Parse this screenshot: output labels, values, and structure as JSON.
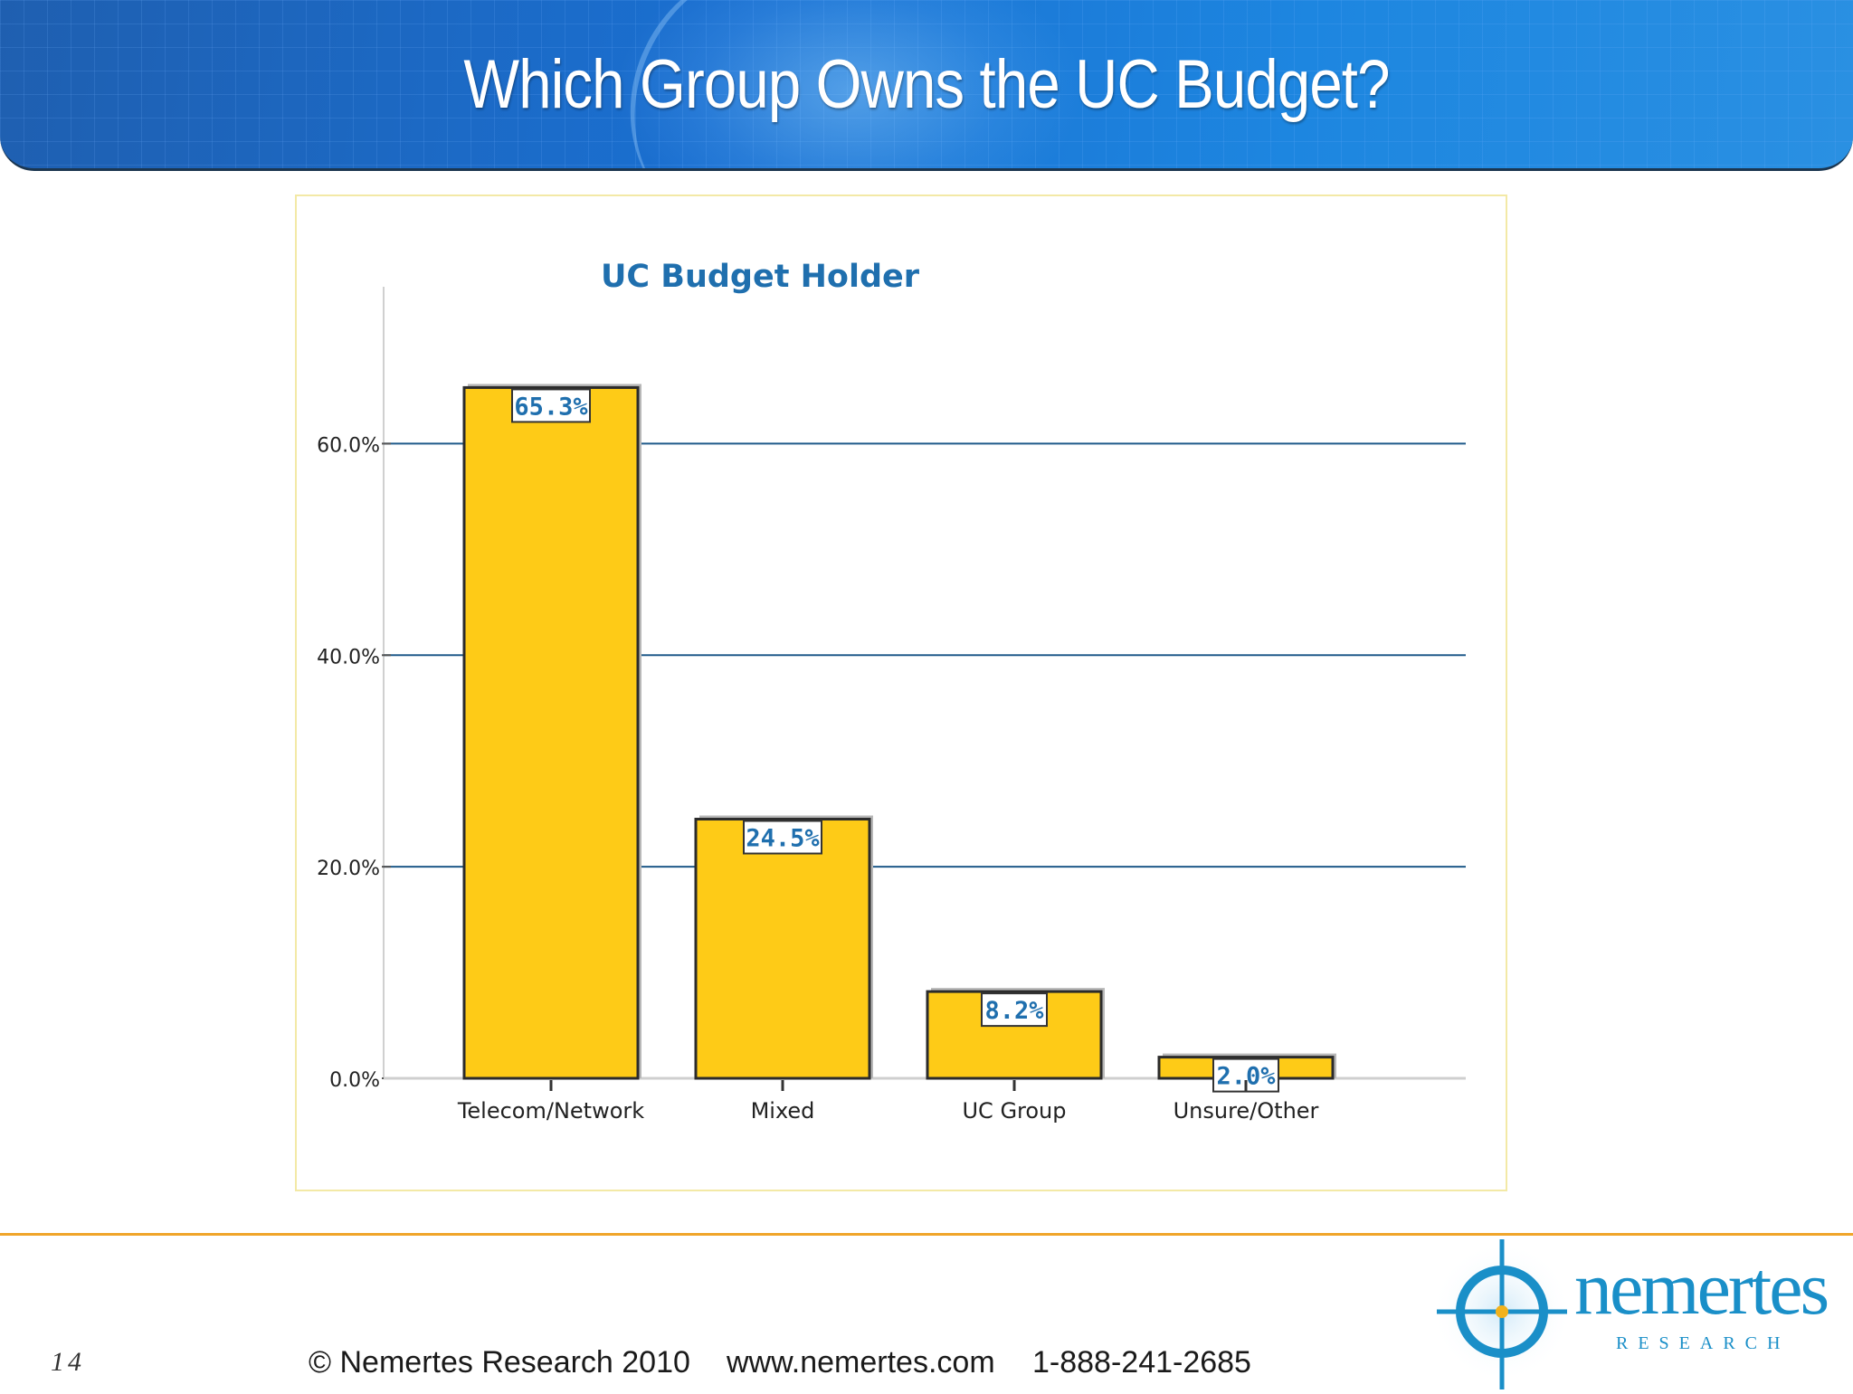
{
  "slide": {
    "title": "Which Group Owns the UC Budget?",
    "page_number": "14"
  },
  "footer": {
    "copyright": "© Nemertes Research 2010",
    "website": "www.nemertes.com",
    "phone": "1-888-241-2685"
  },
  "logo": {
    "name": "nemertes",
    "tagline": "RESEARCH"
  },
  "colors": {
    "bar_fill": "#fecb17",
    "bar_stroke": "#2b2b2b",
    "gridline": "#1f5a8a",
    "label_text": "#1f6fae",
    "title_text": "#1f6fae",
    "footer_rule": "#f0a52a"
  },
  "chart_data": {
    "type": "bar",
    "title": "UC Budget Holder",
    "xlabel": "",
    "ylabel": "",
    "categories": [
      "Telecom/Network",
      "Mixed",
      "UC Group",
      "Unsure/Other"
    ],
    "values": [
      65.3,
      24.5,
      8.2,
      2.0
    ],
    "value_labels": [
      "65.3%",
      "24.5%",
      "8.2%",
      "2.0%"
    ],
    "y_ticks": [
      0,
      20,
      40,
      60
    ],
    "y_tick_labels": [
      "0.0%",
      "20.0%",
      "40.0%",
      "60.0%"
    ],
    "ylim": [
      0,
      75
    ],
    "grid": true,
    "legend": "none"
  }
}
